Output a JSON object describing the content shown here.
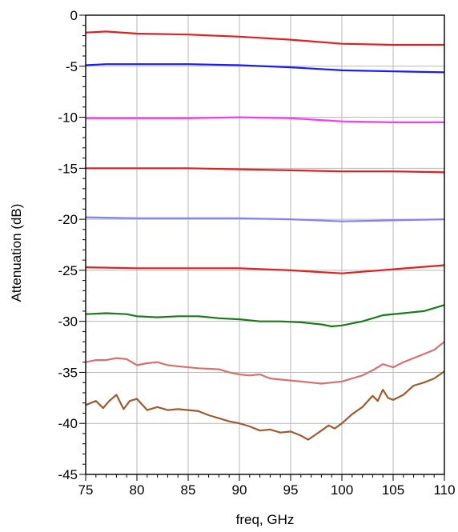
{
  "chart_data": {
    "type": "line",
    "title": "",
    "xlabel": "freq, GHz",
    "ylabel": "Attenuation (dB)",
    "xlim": [
      75,
      110
    ],
    "ylim": [
      -45,
      0
    ],
    "x_ticks": [
      75,
      80,
      85,
      90,
      95,
      100,
      105,
      110
    ],
    "y_ticks": [
      0,
      -5,
      -10,
      -15,
      -20,
      -25,
      -30,
      -35,
      -40,
      -45
    ],
    "grid": true,
    "legend": "none",
    "series": [
      {
        "color": "#e02020",
        "x": [
          75,
          77,
          80,
          85,
          90,
          95,
          100,
          105,
          110
        ],
        "y": [
          -1.7,
          -1.6,
          -1.8,
          -1.9,
          -2.1,
          -2.4,
          -2.8,
          -2.9,
          -2.9
        ]
      },
      {
        "color": "#1a1aff",
        "x": [
          75,
          77,
          80,
          85,
          90,
          95,
          100,
          105,
          110
        ],
        "y": [
          -4.9,
          -4.8,
          -4.8,
          -4.8,
          -4.9,
          -5.1,
          -5.4,
          -5.5,
          -5.6
        ]
      },
      {
        "color": "#ff33ff",
        "x": [
          75,
          80,
          85,
          90,
          95,
          100,
          105,
          110
        ],
        "y": [
          -10.1,
          -10.1,
          -10.1,
          -10.0,
          -10.1,
          -10.4,
          -10.5,
          -10.5
        ]
      },
      {
        "color": "#e02020",
        "x": [
          75,
          80,
          85,
          90,
          95,
          100,
          105,
          110
        ],
        "y": [
          -15.0,
          -15.0,
          -15.0,
          -15.1,
          -15.2,
          -15.3,
          -15.3,
          -15.4
        ]
      },
      {
        "color": "#8080ff",
        "x": [
          75,
          80,
          85,
          90,
          95,
          100,
          105,
          110
        ],
        "y": [
          -19.8,
          -19.9,
          -19.9,
          -19.9,
          -20.0,
          -20.2,
          -20.1,
          -20.0
        ]
      },
      {
        "color": "#e02020",
        "x": [
          75,
          80,
          85,
          90,
          95,
          100,
          105,
          110
        ],
        "y": [
          -24.7,
          -24.8,
          -24.8,
          -24.8,
          -25.0,
          -25.3,
          -24.9,
          -24.5
        ]
      },
      {
        "color": "#1a7a1a",
        "x": [
          75,
          77,
          79,
          80,
          82,
          84,
          86,
          88,
          90,
          92,
          94,
          96,
          98,
          99,
          100,
          102,
          104,
          106,
          108,
          110
        ],
        "y": [
          -29.3,
          -29.2,
          -29.3,
          -29.5,
          -29.6,
          -29.5,
          -29.5,
          -29.7,
          -29.8,
          -30.0,
          -30.0,
          -30.1,
          -30.3,
          -30.5,
          -30.4,
          -30.0,
          -29.4,
          -29.2,
          -29.0,
          -28.4
        ]
      },
      {
        "color": "#d87070",
        "x": [
          75,
          76,
          77,
          78,
          79,
          80,
          81,
          82,
          83,
          84,
          86,
          88,
          89,
          90,
          91,
          92,
          93,
          94,
          95,
          96,
          97,
          98,
          99,
          100,
          101,
          102,
          103,
          104,
          105,
          106,
          107,
          108,
          109,
          110
        ],
        "y": [
          -34.0,
          -33.8,
          -33.8,
          -33.6,
          -33.7,
          -34.3,
          -34.1,
          -34.0,
          -34.3,
          -34.4,
          -34.6,
          -34.7,
          -35.0,
          -35.2,
          -35.3,
          -35.2,
          -35.6,
          -35.7,
          -35.8,
          -35.9,
          -36.0,
          -36.1,
          -36.0,
          -35.9,
          -35.6,
          -35.3,
          -34.8,
          -34.2,
          -34.5,
          -34.0,
          -33.6,
          -33.2,
          -32.8,
          -32.0
        ]
      },
      {
        "color": "#a05a30",
        "x": [
          75,
          76,
          76.7,
          77.3,
          78,
          78.7,
          79.3,
          80,
          81,
          82,
          83,
          84,
          86,
          87,
          88,
          89,
          90,
          91,
          92,
          93,
          94,
          95,
          96,
          96.7,
          97.3,
          98,
          98.7,
          99.3,
          100,
          101,
          102,
          103,
          103.5,
          104,
          104.5,
          105,
          106,
          107,
          108,
          109,
          110
        ],
        "y": [
          -38.2,
          -37.8,
          -38.5,
          -37.8,
          -37.2,
          -38.6,
          -37.8,
          -37.6,
          -38.7,
          -38.4,
          -38.7,
          -38.6,
          -38.8,
          -39.2,
          -39.5,
          -39.8,
          -40.0,
          -40.3,
          -40.7,
          -40.6,
          -40.9,
          -40.8,
          -41.2,
          -41.6,
          -41.2,
          -40.7,
          -40.2,
          -40.5,
          -40.0,
          -39.1,
          -38.4,
          -37.3,
          -37.8,
          -36.7,
          -37.5,
          -37.7,
          -37.2,
          -36.3,
          -36.0,
          -35.6,
          -34.9
        ]
      }
    ]
  }
}
